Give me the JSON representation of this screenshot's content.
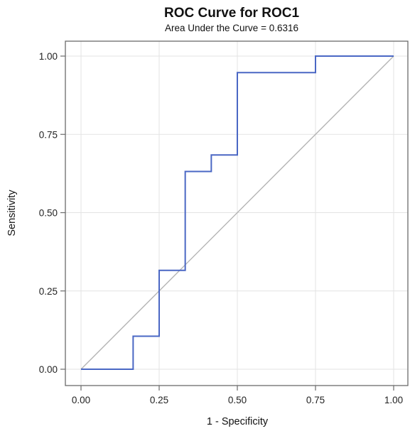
{
  "chart_data": {
    "type": "line",
    "title": "ROC Curve for ROC1",
    "subtitle": "Area Under the Curve = 0.6316",
    "xlabel": "1 - Specificity",
    "ylabel": "Sensitivity",
    "xlim": [
      0,
      1
    ],
    "ylim": [
      0,
      1
    ],
    "x_ticks": [
      "0.00",
      "0.25",
      "0.50",
      "0.75",
      "1.00"
    ],
    "y_ticks": [
      "0.00",
      "0.25",
      "0.50",
      "0.75",
      "1.00"
    ],
    "grid": true,
    "series": [
      {
        "color": "#4a67c4",
        "step": true,
        "points": [
          [
            0.0,
            0.0
          ],
          [
            0.1667,
            0.0
          ],
          [
            0.1667,
            0.1053
          ],
          [
            0.25,
            0.1053
          ],
          [
            0.25,
            0.3158
          ],
          [
            0.3333,
            0.3158
          ],
          [
            0.3333,
            0.6316
          ],
          [
            0.4167,
            0.6316
          ],
          [
            0.4167,
            0.6842
          ],
          [
            0.5,
            0.6842
          ],
          [
            0.5,
            0.9474
          ],
          [
            0.75,
            0.9474
          ],
          [
            0.75,
            1.0
          ],
          [
            1.0,
            1.0
          ]
        ]
      }
    ],
    "reference_line": {
      "points": [
        [
          0,
          0
        ],
        [
          1,
          1
        ]
      ],
      "color": "#b4b4b4"
    }
  }
}
